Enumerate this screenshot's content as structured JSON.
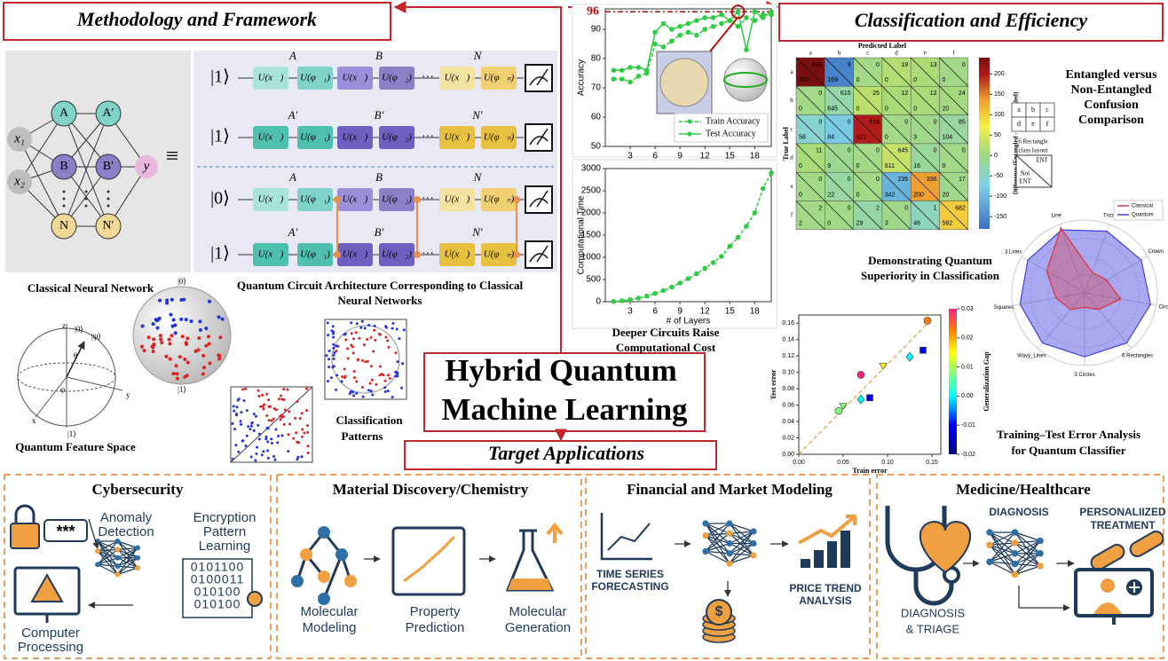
{
  "methodology": {
    "title": "Methodology and Framework",
    "network": {
      "inputs": [
        "x₁",
        "x₂"
      ],
      "hidden1": [
        "A",
        "B",
        "N"
      ],
      "hidden2": [
        "A′",
        "B′",
        "N′"
      ],
      "output": "y",
      "equiv": "≡"
    },
    "network_caption": "Classical Neural Network",
    "circuit": {
      "states": [
        "|1⟩",
        "|1⟩",
        "|0⟩",
        "|1⟩"
      ],
      "gates": [
        "U(x⃗)",
        "U(φ⃗₁)",
        "U(x⃗)",
        "U(φ⃗₂)",
        "U(x⃗)",
        "U(φ⃗ₙ)"
      ],
      "labels": [
        [
          "A",
          "B",
          "N"
        ],
        [
          "A′",
          "B′",
          "N′"
        ],
        [
          "A",
          "B",
          "N"
        ],
        [
          "A′",
          "B′",
          "N′"
        ]
      ]
    },
    "circuit_caption": [
      "Quantum Circuit Architecture Corresponding to Classical",
      "Neural Networks"
    ],
    "bloch_labels": [
      "z",
      "|0⟩",
      "|ψ⟩",
      "θ",
      "φ",
      "x",
      "y",
      "|1⟩"
    ],
    "sphere_labels": [
      "|0⟩",
      "|1⟩"
    ],
    "feature_caption": "Quantum Feature Space",
    "patterns_caption": [
      "Classification",
      "Patterns"
    ]
  },
  "center": {
    "hybrid": [
      "Hybrid Quantum",
      "Machine Learning"
    ],
    "applications": "Target Applications",
    "cost_caption": [
      "Deeper Circuits Raise",
      "Computational Cost"
    ]
  },
  "classification": {
    "title": "Classification and Efficiency",
    "confusion_caption": [
      "Entangled versus",
      "Non-Entangled",
      "Confusion",
      "Comparison"
    ],
    "layout": {
      "cells": [
        "a",
        "b",
        "c",
        "d",
        "e",
        "f"
      ],
      "caption": [
        "6 Rectangle",
        "class layout"
      ],
      "ent": "ENT",
      "not_ent": [
        "Not",
        "ENT"
      ]
    },
    "radar_caption": [
      "Demonstrating Quantum",
      "Superiority in Classification"
    ],
    "error_caption": [
      "Training–Test Error Analysis",
      "for Quantum Classifier"
    ]
  },
  "chart_data": [
    {
      "type": "line",
      "ylabel": "Accuracy",
      "x": [
        1,
        2,
        3,
        4,
        5,
        6,
        7,
        8,
        9,
        10,
        11,
        12,
        13,
        14,
        15,
        16,
        17,
        18,
        19,
        20
      ],
      "series": [
        {
          "name": "Train Accuracy",
          "color": "#2ecc40",
          "values": [
            73,
            73,
            72,
            74,
            75,
            85,
            84,
            86,
            88,
            89,
            88,
            90,
            91,
            92,
            93,
            91,
            94,
            93,
            95,
            95
          ]
        },
        {
          "name": "Test Accuracy",
          "color": "#2ecc40",
          "values": [
            76,
            76,
            77,
            77,
            76,
            89,
            92,
            90,
            91,
            92,
            93,
            94,
            94,
            95,
            93,
            96,
            83,
            96,
            94,
            96
          ]
        }
      ],
      "highlight": 96,
      "xlim": [
        0,
        20
      ],
      "ylim": [
        50,
        97
      ],
      "xticks": [
        3,
        6,
        9,
        12,
        15,
        18
      ],
      "yticks": [
        50,
        60,
        70,
        80,
        90
      ]
    },
    {
      "type": "line",
      "xlabel": "# of Layers",
      "ylabel": "Computational Time",
      "x": [
        1,
        2,
        3,
        4,
        5,
        6,
        7,
        8,
        9,
        10,
        11,
        12,
        13,
        14,
        15,
        16,
        17,
        18,
        19,
        20
      ],
      "series": [
        {
          "name": "Computational Time",
          "color": "#2ecc40",
          "values": [
            5,
            20,
            45,
            80,
            125,
            185,
            250,
            330,
            420,
            520,
            630,
            750,
            880,
            1020,
            1250,
            1450,
            1700,
            2000,
            2550,
            2900
          ]
        }
      ],
      "xlim": [
        0,
        20
      ],
      "ylim": [
        0,
        3000
      ],
      "xticks": [
        3,
        6,
        9,
        12,
        15,
        18
      ],
      "yticks": [
        0,
        500,
        1000,
        1500,
        2000,
        2500,
        3000
      ]
    },
    {
      "type": "heatmap",
      "xlabel": "Predicted Label",
      "ylabel": "True Label",
      "categories": [
        "a",
        "b",
        "c",
        "d",
        "e",
        "f"
      ],
      "cells": [
        [
          [
            598,
            353
          ],
          [
            9,
            169
          ],
          [
            0,
            0
          ],
          [
            19,
            0
          ],
          [
            13,
            0
          ],
          [
            0,
            0
          ]
        ],
        [
          [
            0,
            0
          ],
          [
            615,
            645
          ],
          [
            25,
            0
          ],
          [
            12,
            0
          ],
          [
            12,
            0
          ],
          [
            24,
            20
          ]
        ],
        [
          [
            0,
            58
          ],
          [
            0,
            84
          ],
          [
            619,
            422
          ],
          [
            0,
            0
          ],
          [
            0,
            3
          ],
          [
            85,
            104
          ]
        ],
        [
          [
            11,
            0
          ],
          [
            0,
            9
          ],
          [
            0,
            0
          ],
          [
            645,
            611
          ],
          [
            0,
            16
          ],
          [
            0,
            0
          ]
        ],
        [
          [
            0,
            0
          ],
          [
            0,
            22
          ],
          [
            0,
            0
          ],
          [
            235,
            342
          ],
          [
            336,
            200
          ],
          [
            17,
            20
          ]
        ],
        [
          [
            2,
            2
          ],
          [
            0,
            0
          ],
          [
            2,
            29
          ],
          [
            0,
            3
          ],
          [
            1,
            46
          ],
          [
            682,
            582
          ]
        ]
      ],
      "colorbar_label": "Difference (Entangled - Nonentangled)",
      "clim": [
        -180,
        240
      ],
      "cticks": [
        200,
        150,
        100,
        50,
        0,
        -50,
        -100,
        -150
      ]
    },
    {
      "type": "radar",
      "categories": [
        "Line",
        "Tricross",
        "Crown",
        "Circle",
        "6 Rectangles",
        "3 Circles",
        "Wavy_Lines",
        "Squares",
        "3 Lines"
      ],
      "series": [
        {
          "name": "Classical",
          "color": "#e0303a",
          "values": [
            0.95,
            0.3,
            0.35,
            0.5,
            0.3,
            0.2,
            0.3,
            0.4,
            0.6
          ]
        },
        {
          "name": "Quantum",
          "color": "#4040e0",
          "values": [
            0.92,
            0.9,
            0.9,
            0.92,
            0.9,
            0.88,
            0.9,
            0.9,
            0.9
          ]
        }
      ],
      "ylim": [
        0,
        1
      ],
      "legend": "upper right"
    },
    {
      "type": "scatter",
      "xlabel": "Train error",
      "ylabel": "Test error",
      "x": [
        0.145,
        0.14,
        0.125,
        0.095,
        0.07,
        0.08,
        0.07,
        0.05,
        0.045
      ],
      "values": [
        0.163,
        0.127,
        0.119,
        0.108,
        0.097,
        0.069,
        0.067,
        0.059,
        0.053
      ],
      "xlim": [
        0,
        0.16
      ],
      "ylim": [
        0,
        0.17
      ],
      "xticks": [
        {
          "value": 0,
          "label": "0.00"
        },
        {
          "value": 0.05,
          "label": "0.05"
        },
        {
          "value": 0.1,
          "label": "0.10"
        },
        {
          "value": 0.15,
          "label": "0.15"
        }
      ],
      "yticks": [
        {
          "value": 0,
          "label": "0.00"
        },
        0.02,
        0.04,
        0.06,
        0.08,
        {
          "value": 0.1,
          "label": "0.10"
        },
        0.12,
        0.14,
        0.16
      ],
      "colorbar_label": "Generalization Gap",
      "clim": [
        -0.02,
        0.03
      ],
      "cticks": [
        -0.02,
        -0.01,
        {
          "value": 0,
          "label": "0.00"
        },
        0.01,
        0.02,
        0.03
      ]
    }
  ],
  "applications": [
    {
      "title": "Cybersecurity",
      "password": "***",
      "anomaly": [
        "Anomaly",
        "Detection"
      ],
      "encryption": [
        "Encryption",
        "Pattern",
        "Learning"
      ],
      "binary": [
        "0101100",
        "0100011",
        "010100",
        "010100"
      ],
      "processing": [
        "Computer",
        "Processing"
      ]
    },
    {
      "title": "Material Discovery/Chemistry",
      "modeling": [
        "Molecular",
        "Modeling"
      ],
      "prediction": [
        "Property",
        "Prediction"
      ],
      "generation": [
        "Molecular",
        "Generation"
      ]
    },
    {
      "title": "Financial and Market Modeling",
      "forecast": [
        "TIME SERIES",
        "FORECASTING"
      ],
      "trend": [
        "PRICE TREND",
        "ANALYSIS"
      ],
      "dollar": "$"
    },
    {
      "title": "Medicine/Healthcare",
      "diagnosis": "DIAGNOSIS",
      "treatment": [
        "PERSONALIIZED",
        "TREATMENT"
      ],
      "triage": [
        "DIAGNOSIS",
        "& TRIAGE"
      ]
    }
  ]
}
